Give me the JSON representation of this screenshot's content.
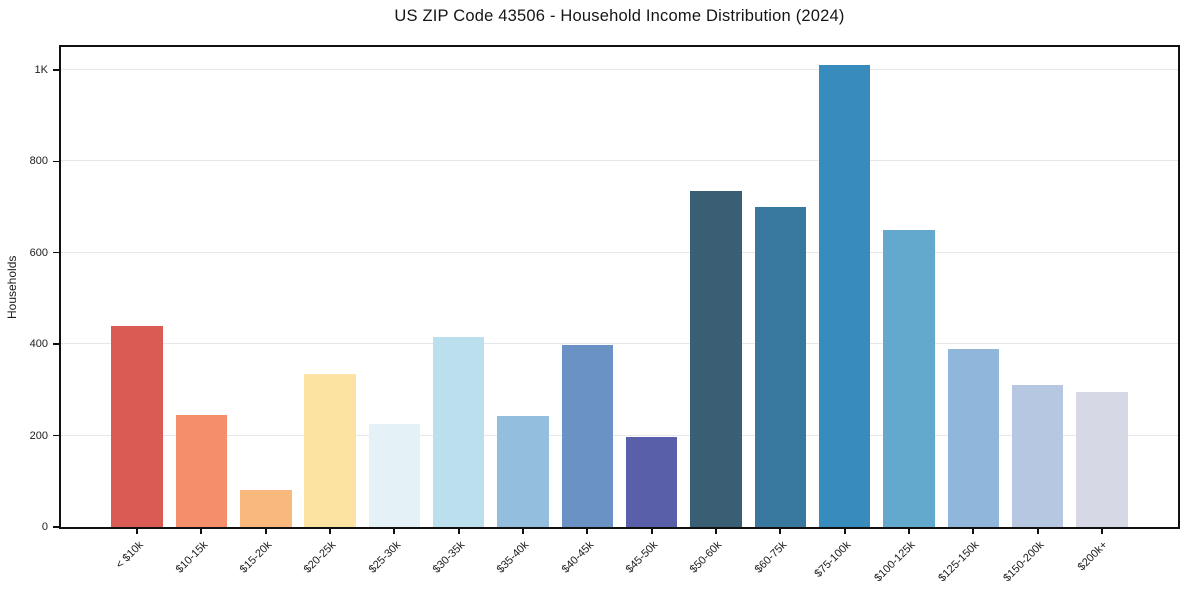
{
  "chart_data": {
    "type": "bar",
    "title": "US ZIP Code 43506 - Household Income Distribution (2024)",
    "xlabel": "",
    "ylabel": "Households",
    "categories": [
      "< $10k",
      "$10-15k",
      "$15-20k",
      "$20-25k",
      "$25-30k",
      "$30-35k",
      "$35-40k",
      "$40-45k",
      "$45-50k",
      "$50-60k",
      "$60-75k",
      "$75-100k",
      "$100-125k",
      "$125-150k",
      "$150-200k",
      "$200k+"
    ],
    "values": [
      440,
      245,
      80,
      335,
      225,
      415,
      242,
      398,
      198,
      735,
      700,
      1010,
      650,
      390,
      310,
      295
    ],
    "bar_colors": [
      "#d95b53",
      "#f48e6b",
      "#f9b87c",
      "#fce3a1",
      "#e4f1f6",
      "#bbdfec",
      "#93bedd",
      "#6b92c4",
      "#5a5fa9",
      "#3a5f74",
      "#38789e",
      "#378cbd",
      "#63a8cd",
      "#90b6db",
      "#b6c8e1",
      "#d6d8e6"
    ],
    "yticks": [
      {
        "value": 0,
        "label": "0"
      },
      {
        "value": 200,
        "label": "200"
      },
      {
        "value": 400,
        "label": "400"
      },
      {
        "value": 600,
        "label": "600"
      },
      {
        "value": 800,
        "label": "800"
      },
      {
        "value": 1000,
        "label": "1K"
      }
    ],
    "ylim": [
      0,
      1050
    ],
    "grid": "horizontal",
    "grid_color": "#e7e7e9",
    "frame_color": "#111111",
    "background": "#ffffff",
    "legend": "none"
  }
}
